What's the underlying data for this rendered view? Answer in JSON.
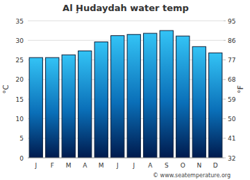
{
  "chart_data": {
    "type": "bar",
    "title": "Al Ḩudaydah water temp",
    "categories": [
      "J",
      "F",
      "M",
      "A",
      "M",
      "J",
      "J",
      "A",
      "S",
      "O",
      "N",
      "D"
    ],
    "values": [
      25.6,
      25.6,
      26.3,
      27.3,
      29.6,
      31.2,
      31.5,
      31.8,
      32.5,
      31.1,
      28.4,
      26.8
    ],
    "color": "#33c3f5",
    "ylabel": "°C",
    "y2label": "°F",
    "ylim": [
      0,
      35
    ],
    "yticks": [
      0,
      5,
      10,
      15,
      20,
      25,
      30,
      35
    ],
    "y2lim": [
      32,
      95
    ],
    "y2ticks": [
      32,
      41,
      50,
      59,
      68,
      77,
      86,
      95
    ],
    "grid": true,
    "source": "© www.seatemperature.org"
  }
}
